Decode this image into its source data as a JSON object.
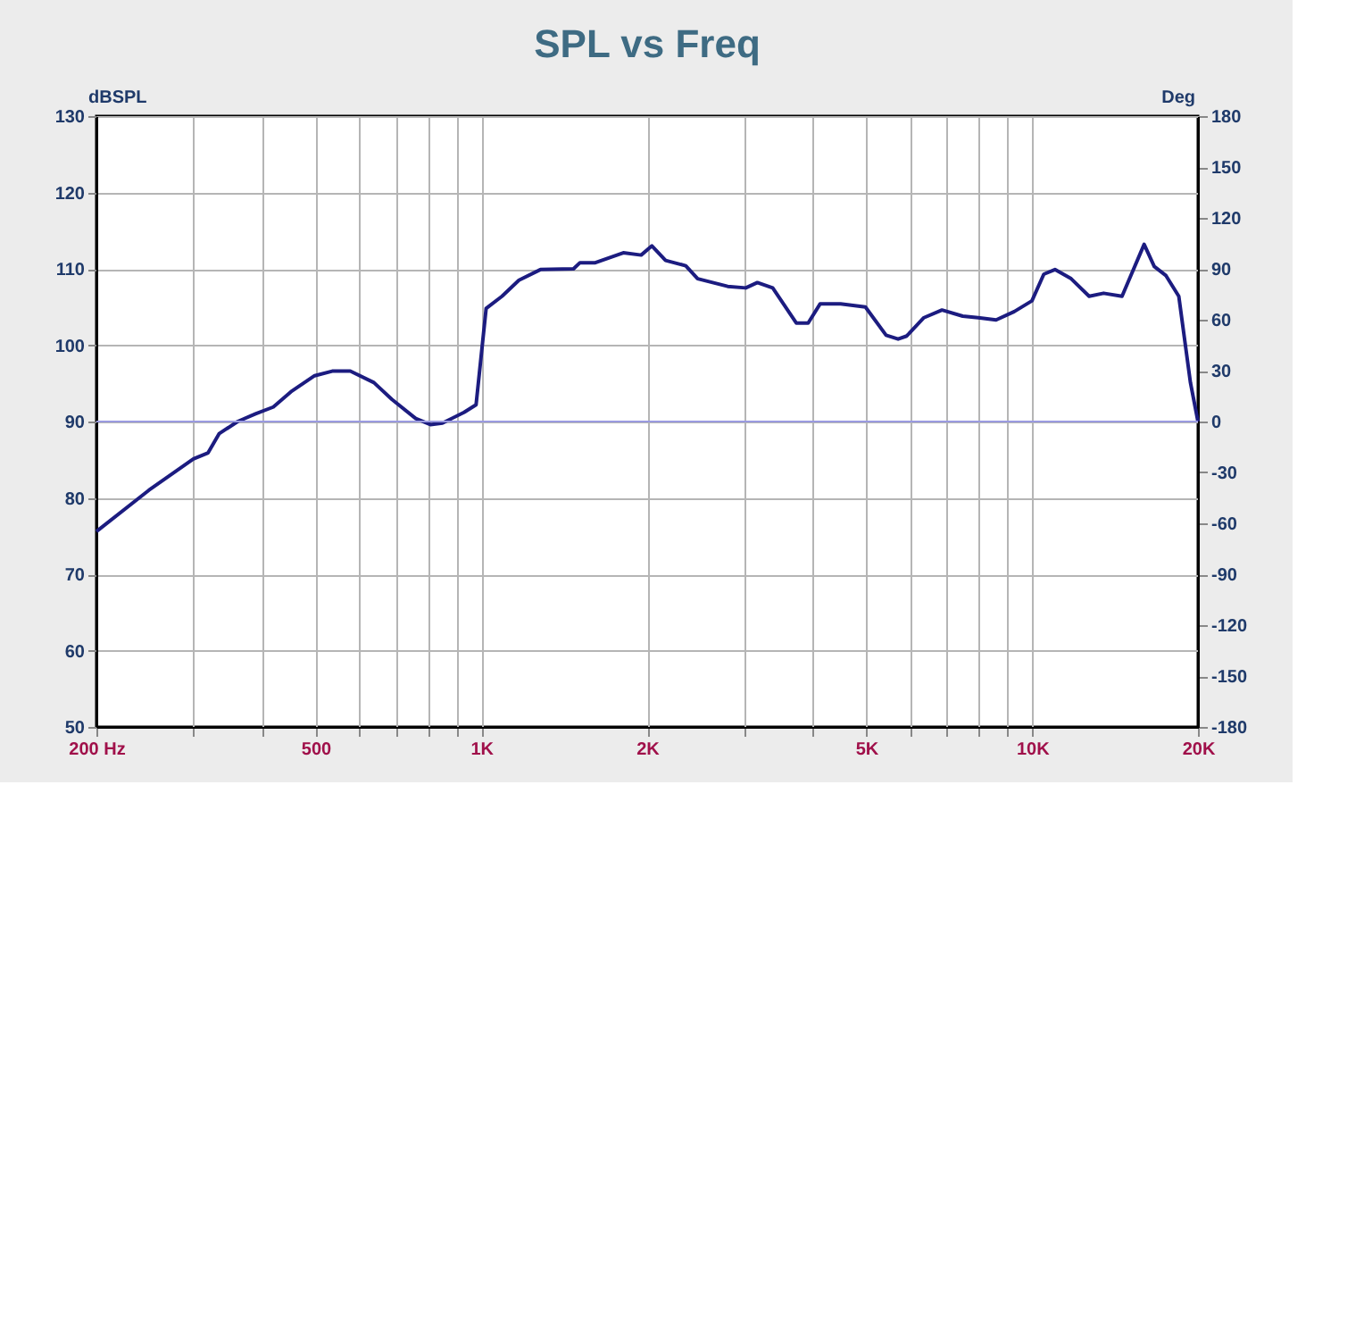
{
  "chart_data": {
    "type": "line",
    "title": "SPL vs Freq",
    "ylabel": "dBSPL",
    "y2label": "Deg",
    "log": "x",
    "grid": true,
    "legend": false,
    "marker": "none",
    "line_style": "solid",
    "xlim": [
      200,
      20000
    ],
    "xticks": [
      {
        "value": 200,
        "label": "200 Hz"
      },
      {
        "value": 300,
        "label": null
      },
      {
        "value": 400,
        "label": null
      },
      500,
      {
        "value": 600,
        "label": null
      },
      {
        "value": 700,
        "label": null
      },
      {
        "value": 800,
        "label": null
      },
      {
        "value": 900,
        "label": null
      },
      {
        "value": 1000,
        "label": "1K"
      },
      {
        "value": 2000,
        "label": "2K"
      },
      {
        "value": 3000,
        "label": null
      },
      {
        "value": 4000,
        "label": null
      },
      {
        "value": 5000,
        "label": "5K"
      },
      {
        "value": 6000,
        "label": null
      },
      {
        "value": 7000,
        "label": null
      },
      {
        "value": 8000,
        "label": null
      },
      {
        "value": 9000,
        "label": null
      },
      {
        "value": 10000,
        "label": "10K"
      },
      {
        "value": 20000,
        "label": "20K"
      }
    ],
    "ylim": [
      50,
      130
    ],
    "yticks": [
      50,
      60,
      70,
      80,
      90,
      100,
      110,
      120,
      130
    ],
    "y2lim": [
      -180,
      180
    ],
    "y2ticks": [
      -180,
      -150,
      -120,
      -90,
      -60,
      -30,
      0,
      30,
      60,
      90,
      120,
      150,
      180
    ],
    "ref_lines": [
      {
        "axis": "y",
        "value": 90,
        "color": "#9a9ae0"
      }
    ],
    "series": [
      {
        "color": "#1c1c80",
        "x": [
          200,
          249,
          300,
          319,
          334,
          361,
          389,
          419,
          451,
          498,
          536,
          578,
          638,
          688,
          760,
          808,
          850,
          930,
          978,
          1020,
          1090,
          1170,
          1280,
          1470,
          1510,
          1610,
          1810,
          1950,
          2040,
          2160,
          2350,
          2470,
          2800,
          3020,
          3170,
          3380,
          3730,
          3920,
          4120,
          4490,
          4980,
          5430,
          5710,
          5920,
          6360,
          6860,
          7480,
          7980,
          8600,
          9280,
          9990,
          10500,
          11000,
          11770,
          12690,
          13480,
          14560,
          15970,
          16660,
          17500,
          18460,
          19380,
          20000
        ],
        "values": [
          75.6,
          81.0,
          85.1,
          85.9,
          88.4,
          90.0,
          91.0,
          91.9,
          93.9,
          96.0,
          96.6,
          96.6,
          95.1,
          92.9,
          90.4,
          89.6,
          89.8,
          91.2,
          92.2,
          104.8,
          106.4,
          108.5,
          109.9,
          110.0,
          110.8,
          110.8,
          112.1,
          111.8,
          113.0,
          111.1,
          110.4,
          108.7,
          107.7,
          107.5,
          108.2,
          107.5,
          102.9,
          102.9,
          105.4,
          105.4,
          105.0,
          101.3,
          100.8,
          101.2,
          103.6,
          104.6,
          103.8,
          103.6,
          103.3,
          104.4,
          105.8,
          109.3,
          109.9,
          108.7,
          106.4,
          106.8,
          106.4,
          113.2,
          110.3,
          109.1,
          106.4,
          95.1,
          90.0
        ]
      }
    ]
  }
}
